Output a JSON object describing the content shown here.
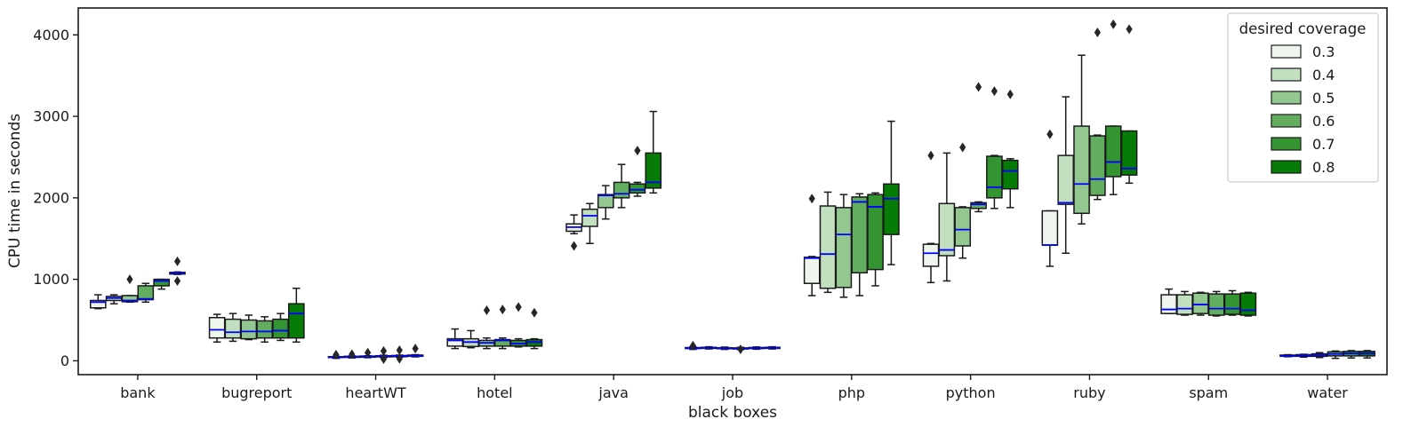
{
  "chart_data": {
    "type": "box",
    "xlabel": "black boxes",
    "ylabel": "CPU time in seconds",
    "ylim": [
      -170,
      4330
    ],
    "yticks": [
      0,
      1000,
      2000,
      3000,
      4000
    ],
    "categories": [
      "bank",
      "bugreport",
      "heartWT",
      "hotel",
      "java",
      "job",
      "php",
      "python",
      "ruby",
      "spam",
      "water"
    ],
    "median_color": "#0000ff",
    "legend": {
      "title": "desired coverage",
      "position": "top-right",
      "entries": [
        {
          "label": "0.3",
          "color": "#edf5ec"
        },
        {
          "label": "0.4",
          "color": "#c2e0c0"
        },
        {
          "label": "0.5",
          "color": "#92c890"
        },
        {
          "label": "0.6",
          "color": "#62ad60"
        },
        {
          "label": "0.7",
          "color": "#359432"
        },
        {
          "label": "0.8",
          "color": "#067b06"
        }
      ]
    },
    "boxes": {
      "bank": [
        {
          "wlo": 640,
          "q1": 650,
          "med": 720,
          "q3": 740,
          "whi": 810,
          "fliers": []
        },
        {
          "wlo": 700,
          "q1": 740,
          "med": 770,
          "q3": 790,
          "whi": 810,
          "fliers": []
        },
        {
          "wlo": 720,
          "q1": 725,
          "med": 740,
          "q3": 800,
          "whi": 800,
          "fliers": [
            1000
          ]
        },
        {
          "wlo": 720,
          "q1": 750,
          "med": 760,
          "q3": 920,
          "whi": 950,
          "fliers": []
        },
        {
          "wlo": 880,
          "q1": 920,
          "med": 980,
          "q3": 1000,
          "whi": 1000,
          "fliers": []
        },
        {
          "wlo": 1060,
          "q1": 1065,
          "med": 1075,
          "q3": 1085,
          "whi": 1090,
          "fliers": [
            1220,
            980
          ]
        }
      ],
      "bugreport": [
        {
          "wlo": 230,
          "q1": 280,
          "med": 380,
          "q3": 530,
          "whi": 570,
          "fliers": []
        },
        {
          "wlo": 240,
          "q1": 280,
          "med": 350,
          "q3": 510,
          "whi": 580,
          "fliers": []
        },
        {
          "wlo": 260,
          "q1": 270,
          "med": 360,
          "q3": 500,
          "whi": 560,
          "fliers": []
        },
        {
          "wlo": 230,
          "q1": 280,
          "med": 360,
          "q3": 490,
          "whi": 540,
          "fliers": []
        },
        {
          "wlo": 250,
          "q1": 280,
          "med": 370,
          "q3": 510,
          "whi": 580,
          "fliers": []
        },
        {
          "wlo": 230,
          "q1": 280,
          "med": 580,
          "q3": 700,
          "whi": 890,
          "fliers": []
        }
      ],
      "heartWT": [
        {
          "wlo": 30,
          "q1": 40,
          "med": 45,
          "q3": 50,
          "whi": 55,
          "fliers": [
            75
          ]
        },
        {
          "wlo": 35,
          "q1": 42,
          "med": 48,
          "q3": 55,
          "whi": 60,
          "fliers": [
            80
          ]
        },
        {
          "wlo": 38,
          "q1": 44,
          "med": 50,
          "q3": 58,
          "whi": 62,
          "fliers": [
            100
          ]
        },
        {
          "wlo": 40,
          "q1": 48,
          "med": 55,
          "q3": 62,
          "whi": 68,
          "fliers": [
            120,
            20
          ]
        },
        {
          "wlo": 45,
          "q1": 50,
          "med": 58,
          "q3": 65,
          "whi": 70,
          "fliers": [
            130,
            25
          ]
        },
        {
          "wlo": 48,
          "q1": 55,
          "med": 62,
          "q3": 70,
          "whi": 75,
          "fliers": [
            150
          ]
        }
      ],
      "hotel": [
        {
          "wlo": 150,
          "q1": 180,
          "med": 250,
          "q3": 270,
          "whi": 390,
          "fliers": []
        },
        {
          "wlo": 160,
          "q1": 175,
          "med": 230,
          "q3": 270,
          "whi": 370,
          "fliers": []
        },
        {
          "wlo": 150,
          "q1": 180,
          "med": 220,
          "q3": 250,
          "whi": 280,
          "fliers": [
            620
          ]
        },
        {
          "wlo": 150,
          "q1": 180,
          "med": 250,
          "q3": 260,
          "whi": 280,
          "fliers": [
            630
          ]
        },
        {
          "wlo": 170,
          "q1": 180,
          "med": 210,
          "q3": 250,
          "whi": 270,
          "fliers": [
            660
          ]
        },
        {
          "wlo": 150,
          "q1": 180,
          "med": 230,
          "q3": 260,
          "whi": 270,
          "fliers": [
            590
          ]
        }
      ],
      "java": [
        {
          "wlo": 1560,
          "q1": 1590,
          "med": 1640,
          "q3": 1680,
          "whi": 1790,
          "fliers": [
            1410
          ]
        },
        {
          "wlo": 1440,
          "q1": 1650,
          "med": 1780,
          "q3": 1860,
          "whi": 1930,
          "fliers": []
        },
        {
          "wlo": 1740,
          "q1": 1880,
          "med": 2030,
          "q3": 2040,
          "whi": 2150,
          "fliers": []
        },
        {
          "wlo": 1880,
          "q1": 2000,
          "med": 2050,
          "q3": 2190,
          "whi": 2410,
          "fliers": []
        },
        {
          "wlo": 2020,
          "q1": 2060,
          "med": 2100,
          "q3": 2170,
          "whi": 2190,
          "fliers": [
            2580
          ]
        },
        {
          "wlo": 2060,
          "q1": 2120,
          "med": 2190,
          "q3": 2550,
          "whi": 3060,
          "fliers": []
        }
      ],
      "job": [
        {
          "wlo": 140,
          "q1": 150,
          "med": 155,
          "q3": 162,
          "whi": 170,
          "fliers": [
            185
          ]
        },
        {
          "wlo": 145,
          "q1": 152,
          "med": 158,
          "q3": 165,
          "whi": 172,
          "fliers": []
        },
        {
          "wlo": 140,
          "q1": 148,
          "med": 154,
          "q3": 160,
          "whi": 168,
          "fliers": []
        },
        {
          "wlo": 138,
          "q1": 145,
          "med": 150,
          "q3": 158,
          "whi": 165,
          "fliers": [
            140
          ]
        },
        {
          "wlo": 142,
          "q1": 150,
          "med": 156,
          "q3": 163,
          "whi": 170,
          "fliers": []
        },
        {
          "wlo": 145,
          "q1": 152,
          "med": 158,
          "q3": 165,
          "whi": 172,
          "fliers": []
        }
      ],
      "php": [
        {
          "wlo": 800,
          "q1": 950,
          "med": 1260,
          "q3": 1270,
          "whi": 1280,
          "fliers": [
            1990
          ]
        },
        {
          "wlo": 840,
          "q1": 890,
          "med": 1310,
          "q3": 1900,
          "whi": 2070,
          "fliers": []
        },
        {
          "wlo": 780,
          "q1": 900,
          "med": 1550,
          "q3": 1880,
          "whi": 2040,
          "fliers": []
        },
        {
          "wlo": 800,
          "q1": 1080,
          "med": 1950,
          "q3": 2010,
          "whi": 2050,
          "fliers": []
        },
        {
          "wlo": 920,
          "q1": 1120,
          "med": 1890,
          "q3": 2040,
          "whi": 2060,
          "fliers": []
        },
        {
          "wlo": 1180,
          "q1": 1550,
          "med": 1990,
          "q3": 2170,
          "whi": 2940,
          "fliers": []
        }
      ],
      "python": [
        {
          "wlo": 960,
          "q1": 1160,
          "med": 1320,
          "q3": 1430,
          "whi": 1440,
          "fliers": [
            2520
          ]
        },
        {
          "wlo": 980,
          "q1": 1290,
          "med": 1360,
          "q3": 1930,
          "whi": 2550,
          "fliers": []
        },
        {
          "wlo": 1260,
          "q1": 1410,
          "med": 1610,
          "q3": 1880,
          "whi": 1890,
          "fliers": [
            2620
          ]
        },
        {
          "wlo": 1830,
          "q1": 1870,
          "med": 1920,
          "q3": 1940,
          "whi": 1950,
          "fliers": [
            3360
          ]
        },
        {
          "wlo": 1870,
          "q1": 2000,
          "med": 2130,
          "q3": 2510,
          "whi": 2520,
          "fliers": [
            3310
          ]
        },
        {
          "wlo": 1880,
          "q1": 2110,
          "med": 2330,
          "q3": 2460,
          "whi": 2480,
          "fliers": [
            3270
          ]
        }
      ],
      "ruby": [
        {
          "wlo": 1160,
          "q1": 1420,
          "med": 1420,
          "q3": 1840,
          "whi": 1840,
          "fliers": [
            2780
          ]
        },
        {
          "wlo": 1320,
          "q1": 1920,
          "med": 1940,
          "q3": 2520,
          "whi": 3240,
          "fliers": []
        },
        {
          "wlo": 1680,
          "q1": 1810,
          "med": 2170,
          "q3": 2880,
          "whi": 3750,
          "fliers": []
        },
        {
          "wlo": 1980,
          "q1": 2030,
          "med": 2230,
          "q3": 2760,
          "whi": 2770,
          "fliers": [
            4030
          ]
        },
        {
          "wlo": 2040,
          "q1": 2260,
          "med": 2440,
          "q3": 2880,
          "whi": 2880,
          "fliers": [
            4130
          ]
        },
        {
          "wlo": 2180,
          "q1": 2280,
          "med": 2360,
          "q3": 2820,
          "whi": 2820,
          "fliers": [
            4070
          ]
        }
      ],
      "spam": [
        {
          "wlo": 580,
          "q1": 580,
          "med": 630,
          "q3": 810,
          "whi": 880,
          "fliers": []
        },
        {
          "wlo": 560,
          "q1": 570,
          "med": 640,
          "q3": 810,
          "whi": 850,
          "fliers": []
        },
        {
          "wlo": 560,
          "q1": 580,
          "med": 690,
          "q3": 830,
          "whi": 840,
          "fliers": []
        },
        {
          "wlo": 550,
          "q1": 560,
          "med": 640,
          "q3": 820,
          "whi": 850,
          "fliers": []
        },
        {
          "wlo": 560,
          "q1": 570,
          "med": 640,
          "q3": 820,
          "whi": 860,
          "fliers": []
        },
        {
          "wlo": 550,
          "q1": 560,
          "med": 620,
          "q3": 830,
          "whi": 840,
          "fliers": []
        }
      ],
      "water": [
        {
          "wlo": 50,
          "q1": 55,
          "med": 60,
          "q3": 70,
          "whi": 75,
          "fliers": []
        },
        {
          "wlo": 45,
          "q1": 55,
          "med": 65,
          "q3": 75,
          "whi": 80,
          "fliers": []
        },
        {
          "wlo": 40,
          "q1": 55,
          "med": 70,
          "q3": 85,
          "whi": 100,
          "fliers": []
        },
        {
          "wlo": 30,
          "q1": 60,
          "med": 85,
          "q3": 110,
          "whi": 120,
          "fliers": []
        },
        {
          "wlo": 35,
          "q1": 60,
          "med": 90,
          "q3": 115,
          "whi": 125,
          "fliers": []
        },
        {
          "wlo": 35,
          "q1": 60,
          "med": 90,
          "q3": 115,
          "whi": 125,
          "fliers": []
        }
      ]
    }
  }
}
